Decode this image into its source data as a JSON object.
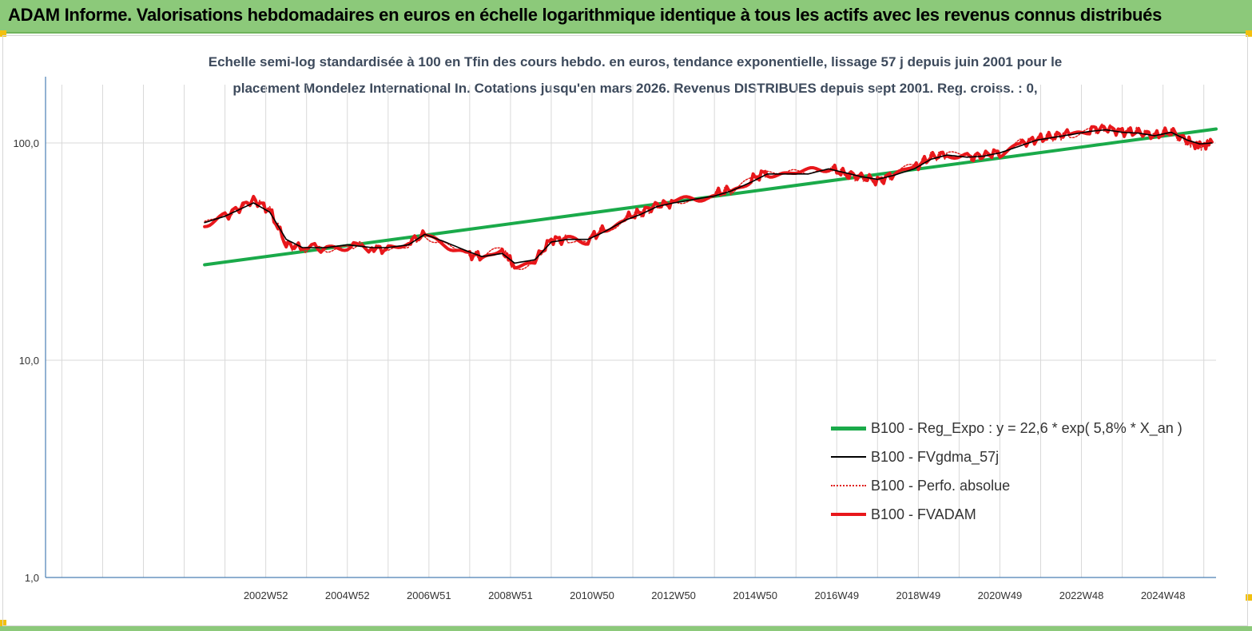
{
  "header": {
    "title": "ADAM Informe. Valorisations hebdomadaires en euros en échelle logarithmique identique à tous les actifs avec les revenus connus distribués"
  },
  "colors": {
    "banner": "#8cc97a",
    "reg_expo": "#1aaa4a",
    "fvgdma": "#000000",
    "perfo": "#e0201e",
    "fvadam": "#e8171b",
    "gridline": "#d9d9d9"
  },
  "chart_data": {
    "type": "line",
    "title_line1": "Echelle semi-log standardisée à 100 en Tfin des cours hebdo. en euros, tendance exponentielle, lissage 57 j depuis juin 2001 pour le",
    "title_line2": "placement Mondelez International In. Cotations jusqu'en mars 2026. Revenus DISTRIBUES depuis sept 2001. Reg. croiss. : 0,",
    "y_scale": "log",
    "ylim": [
      1,
      200
    ],
    "y_ticks": [
      "1,0",
      "10,0",
      "100,0"
    ],
    "y_tick_values": [
      1,
      10,
      100
    ],
    "xlim": [
      1997.6,
      2026.3
    ],
    "x_tick_labels": [
      "2002W52",
      "2004W52",
      "2006W51",
      "2008W51",
      "2010W50",
      "2012W50",
      "2014W50",
      "2016W49",
      "2018W49",
      "2020W49",
      "2022W48",
      "2024W48"
    ],
    "x_tick_values": [
      2003,
      2005,
      2007,
      2009,
      2011,
      2013,
      2015,
      2017,
      2019,
      2021,
      2023,
      2025
    ],
    "x_gridlines": [
      1998,
      1999,
      2000,
      2001,
      2002,
      2003,
      2004,
      2005,
      2006,
      2007,
      2008,
      2009,
      2010,
      2011,
      2012,
      2013,
      2014,
      2015,
      2016,
      2017,
      2018,
      2019,
      2020,
      2021,
      2022,
      2023,
      2024,
      2025,
      2026
    ],
    "grid": true,
    "legend_position": "bottom-right",
    "series": [
      {
        "name": "B100 - Reg_Expo : y = 22,6 *  exp( 5,8% *  X_an )",
        "color": "#1aaa4a",
        "style": "solid-thick",
        "x": [
          2001.5,
          2026.3
        ],
        "y": [
          27.5,
          116
        ]
      },
      {
        "name": "B100 - FVgdma_57j",
        "color": "#000000",
        "style": "solid-thin",
        "x": [
          2001.5,
          2002.0,
          2002.7,
          2003.1,
          2003.5,
          2003.9,
          2004.5,
          2005.0,
          2005.6,
          2006.0,
          2006.5,
          2006.9,
          2007.4,
          2007.9,
          2008.3,
          2008.8,
          2009.1,
          2009.6,
          2010.0,
          2010.4,
          2010.9,
          2011.3,
          2011.8,
          2012.2,
          2012.6,
          2013.0,
          2013.5,
          2014.0,
          2014.4,
          2014.9,
          2015.3,
          2015.8,
          2016.3,
          2016.8,
          2017.2,
          2017.6,
          2018.0,
          2018.4,
          2018.9,
          2019.3,
          2019.7,
          2020.2,
          2020.6,
          2021.0,
          2021.5,
          2021.9,
          2022.3,
          2022.7,
          2023.2,
          2023.6,
          2024.0,
          2024.4,
          2024.8,
          2025.2,
          2025.6,
          2025.9,
          2026.2
        ],
        "y": [
          43,
          46,
          53,
          48,
          36,
          33,
          33,
          34,
          33,
          33,
          34,
          38,
          35,
          32,
          30,
          31,
          28,
          29,
          35,
          36,
          36,
          39,
          44,
          47,
          51,
          53,
          55,
          57,
          60,
          66,
          72,
          72,
          72,
          76,
          73,
          70,
          68,
          71,
          76,
          84,
          88,
          86,
          87,
          90,
          97,
          103,
          106,
          109,
          113,
          115,
          112,
          111,
          108,
          112,
          103,
          99,
          100
        ]
      },
      {
        "name": "B100 - Perfo. absolue",
        "color": "#e0201e",
        "style": "dotted",
        "x": [
          2001.5,
          2002.0,
          2002.7,
          2003.1,
          2003.5,
          2003.9,
          2004.5,
          2005.0,
          2005.6,
          2006.0,
          2006.5,
          2006.9,
          2007.4,
          2007.9,
          2008.3,
          2008.8,
          2009.1,
          2009.6,
          2010.0,
          2010.4,
          2010.9,
          2011.3,
          2011.8,
          2012.2,
          2012.6,
          2013.0,
          2013.5,
          2014.0,
          2014.4,
          2014.9,
          2015.3,
          2015.8,
          2016.3,
          2016.8,
          2017.2,
          2017.6,
          2018.0,
          2018.4,
          2018.9,
          2019.3,
          2019.7,
          2020.2,
          2020.6,
          2021.0,
          2021.5,
          2021.9,
          2022.3,
          2022.7,
          2023.2,
          2023.6,
          2024.0,
          2024.4,
          2024.8,
          2025.2,
          2025.6,
          2025.9,
          2026.2
        ],
        "y": [
          43,
          46,
          55,
          49,
          34,
          33,
          33,
          34,
          33,
          32,
          35,
          38,
          35,
          31,
          30,
          32,
          27,
          29,
          36,
          36,
          36,
          40,
          45,
          48,
          52,
          53,
          56,
          58,
          61,
          68,
          74,
          71,
          73,
          77,
          72,
          70,
          67,
          72,
          77,
          86,
          89,
          86,
          88,
          91,
          99,
          104,
          107,
          111,
          116,
          117,
          113,
          112,
          108,
          113,
          102,
          97,
          101
        ]
      },
      {
        "name": "B100 - FVADAM",
        "color": "#e8171b",
        "style": "solid-thick",
        "x": [
          2001.5,
          2002.0,
          2002.7,
          2003.1,
          2003.5,
          2003.9,
          2004.5,
          2005.0,
          2005.6,
          2006.0,
          2006.5,
          2006.9,
          2007.4,
          2007.9,
          2008.3,
          2008.8,
          2009.1,
          2009.6,
          2010.0,
          2010.4,
          2010.9,
          2011.3,
          2011.8,
          2012.2,
          2012.6,
          2013.0,
          2013.5,
          2014.0,
          2014.4,
          2014.9,
          2015.3,
          2015.8,
          2016.3,
          2016.8,
          2017.2,
          2017.6,
          2018.0,
          2018.4,
          2018.9,
          2019.3,
          2019.7,
          2020.2,
          2020.6,
          2021.0,
          2021.5,
          2021.9,
          2022.3,
          2022.7,
          2023.2,
          2023.6,
          2024.0,
          2024.4,
          2024.8,
          2025.2,
          2025.6,
          2025.9,
          2026.2
        ],
        "y": [
          43,
          46,
          55,
          49,
          34,
          33,
          33,
          34,
          33,
          32,
          35,
          38,
          35,
          31,
          30,
          32,
          27,
          29,
          36,
          36,
          36,
          40,
          45,
          48,
          52,
          53,
          56,
          58,
          61,
          68,
          74,
          71,
          73,
          77,
          72,
          70,
          67,
          72,
          77,
          86,
          89,
          86,
          88,
          91,
          99,
          104,
          107,
          111,
          116,
          117,
          113,
          112,
          108,
          113,
          102,
          97,
          101
        ]
      }
    ]
  }
}
